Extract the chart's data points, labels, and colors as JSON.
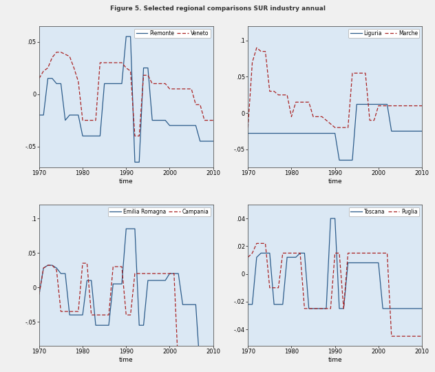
{
  "title": "Figure 5. Selected regional comparisons SUR industry annual",
  "background_color": "#dbe8f4",
  "fig_background": "#f0f0f0",
  "xlim": [
    1970,
    2010
  ],
  "xticks": [
    1970,
    1980,
    1990,
    2000,
    2010
  ],
  "xlabel": "time",
  "panels": [
    {
      "label1": "Piemonte",
      "label2": "Veneto",
      "ylim": [
        -0.07,
        0.065
      ],
      "yticks": [
        -0.05,
        0,
        0.05
      ],
      "yticklabels": [
        "-.05",
        "0",
        ".05"
      ],
      "series1_years": [
        1970,
        1971,
        1972,
        1973,
        1974,
        1975,
        1976,
        1977,
        1978,
        1979,
        1980,
        1981,
        1982,
        1983,
        1984,
        1985,
        1986,
        1987,
        1988,
        1989,
        1990,
        1991,
        1992,
        1993,
        1994,
        1995,
        1996,
        1997,
        1998,
        1999,
        2000,
        2001,
        2002,
        2003,
        2004,
        2005,
        2006,
        2007,
        2008,
        2009,
        2010
      ],
      "series1_vals": [
        -0.02,
        -0.02,
        0.015,
        0.015,
        0.01,
        0.01,
        -0.025,
        -0.02,
        -0.02,
        -0.02,
        -0.04,
        -0.04,
        -0.04,
        -0.04,
        -0.04,
        0.01,
        0.01,
        0.01,
        0.01,
        0.01,
        0.055,
        0.055,
        -0.065,
        -0.065,
        0.025,
        0.025,
        -0.025,
        -0.025,
        -0.025,
        -0.025,
        -0.03,
        -0.03,
        -0.03,
        -0.03,
        -0.03,
        -0.03,
        -0.03,
        -0.045,
        -0.045,
        -0.045,
        -0.045
      ],
      "series2_years": [
        1970,
        1971,
        1972,
        1973,
        1974,
        1975,
        1976,
        1977,
        1978,
        1979,
        1980,
        1981,
        1982,
        1983,
        1984,
        1985,
        1986,
        1987,
        1988,
        1989,
        1990,
        1991,
        1992,
        1993,
        1994,
        1995,
        1996,
        1997,
        1998,
        1999,
        2000,
        2001,
        2002,
        2003,
        2004,
        2005,
        2006,
        2007,
        2008,
        2009,
        2010
      ],
      "series2_vals": [
        0.015,
        0.022,
        0.025,
        0.035,
        0.04,
        0.04,
        0.038,
        0.036,
        0.025,
        0.012,
        -0.025,
        -0.025,
        -0.025,
        -0.025,
        0.03,
        0.03,
        0.03,
        0.03,
        0.03,
        0.03,
        0.025,
        0.022,
        -0.04,
        -0.04,
        0.018,
        0.018,
        0.01,
        0.01,
        0.01,
        0.01,
        0.005,
        0.005,
        0.005,
        0.005,
        0.005,
        0.005,
        -0.01,
        -0.01,
        -0.025,
        -0.025,
        -0.025
      ]
    },
    {
      "label1": "Liguria",
      "label2": "Marche",
      "ylim": [
        -0.075,
        0.12
      ],
      "yticks": [
        -0.05,
        0,
        0.05,
        0.1
      ],
      "yticklabels": [
        "-.05",
        "0",
        ".05",
        ".1"
      ],
      "series1_years": [
        1970,
        1971,
        1972,
        1973,
        1974,
        1975,
        1976,
        1977,
        1978,
        1979,
        1980,
        1981,
        1982,
        1983,
        1984,
        1985,
        1986,
        1987,
        1988,
        1989,
        1990,
        1991,
        1992,
        1993,
        1994,
        1995,
        1996,
        1997,
        1998,
        1999,
        2000,
        2001,
        2002,
        2003,
        2004,
        2005,
        2006,
        2007,
        2008,
        2009,
        2010
      ],
      "series1_vals": [
        -0.028,
        -0.028,
        -0.028,
        -0.028,
        -0.028,
        -0.028,
        -0.028,
        -0.028,
        -0.028,
        -0.028,
        -0.028,
        -0.028,
        -0.028,
        -0.028,
        -0.028,
        -0.028,
        -0.028,
        -0.028,
        -0.028,
        -0.028,
        -0.028,
        -0.065,
        -0.065,
        -0.065,
        -0.065,
        0.012,
        0.012,
        0.012,
        0.012,
        0.012,
        0.012,
        0.012,
        0.012,
        -0.025,
        -0.025,
        -0.025,
        -0.025,
        -0.025,
        -0.025,
        -0.025,
        -0.025
      ],
      "series2_years": [
        1970,
        1971,
        1972,
        1973,
        1974,
        1975,
        1976,
        1977,
        1978,
        1979,
        1980,
        1981,
        1982,
        1983,
        1984,
        1985,
        1986,
        1987,
        1988,
        1989,
        1990,
        1991,
        1992,
        1993,
        1994,
        1995,
        1996,
        1997,
        1998,
        1999,
        2000,
        2001,
        2002,
        2003,
        2004,
        2005,
        2006,
        2007,
        2008,
        2009,
        2010
      ],
      "series2_vals": [
        -0.02,
        0.07,
        0.09,
        0.085,
        0.085,
        0.03,
        0.03,
        0.025,
        0.025,
        0.025,
        -0.005,
        0.015,
        0.015,
        0.015,
        0.015,
        -0.005,
        -0.005,
        -0.005,
        -0.01,
        -0.015,
        -0.02,
        -0.02,
        -0.02,
        -0.02,
        0.055,
        0.055,
        0.055,
        0.055,
        -0.01,
        -0.01,
        0.01,
        0.01,
        0.01,
        0.01,
        0.01,
        0.01,
        0.01,
        0.01,
        0.01,
        0.01,
        0.01
      ]
    },
    {
      "label1": "Emilia Romagna",
      "label2": "Campania",
      "ylim": [
        -0.085,
        0.12
      ],
      "yticks": [
        -0.05,
        0,
        0.05,
        0.1
      ],
      "yticklabels": [
        "-.05",
        "0",
        ".05",
        ".1"
      ],
      "series1_years": [
        1970,
        1971,
        1972,
        1973,
        1974,
        1975,
        1976,
        1977,
        1978,
        1979,
        1980,
        1981,
        1982,
        1983,
        1984,
        1985,
        1986,
        1987,
        1988,
        1989,
        1990,
        1991,
        1992,
        1993,
        1994,
        1995,
        1996,
        1997,
        1998,
        1999,
        2000,
        2001,
        2002,
        2003,
        2004,
        2005,
        2006,
        2007,
        2008,
        2009,
        2010
      ],
      "series1_vals": [
        -0.01,
        0.028,
        0.032,
        0.032,
        0.028,
        0.02,
        0.02,
        -0.04,
        -0.04,
        -0.04,
        -0.04,
        0.01,
        0.01,
        -0.055,
        -0.055,
        -0.055,
        -0.055,
        0.005,
        0.005,
        0.005,
        0.085,
        0.085,
        0.085,
        -0.055,
        -0.055,
        0.01,
        0.01,
        0.01,
        0.01,
        0.01,
        0.02,
        0.02,
        0.02,
        -0.025,
        -0.025,
        -0.025,
        -0.025,
        -0.12,
        -0.12,
        -0.12,
        -0.12
      ],
      "series2_years": [
        1970,
        1971,
        1972,
        1973,
        1974,
        1975,
        1976,
        1977,
        1978,
        1979,
        1980,
        1981,
        1982,
        1983,
        1984,
        1985,
        1986,
        1987,
        1988,
        1989,
        1990,
        1991,
        1992,
        1993,
        1994,
        1995,
        1996,
        1997,
        1998,
        1999,
        2000,
        2001,
        2002,
        2003,
        2004,
        2005,
        2006,
        2007,
        2008,
        2009,
        2010
      ],
      "series2_vals": [
        -0.01,
        0.028,
        0.032,
        0.032,
        0.025,
        -0.035,
        -0.035,
        -0.035,
        -0.035,
        -0.035,
        0.035,
        0.035,
        -0.04,
        -0.04,
        -0.04,
        -0.04,
        -0.04,
        0.03,
        0.03,
        0.03,
        -0.04,
        -0.04,
        0.02,
        0.02,
        0.02,
        0.02,
        0.02,
        0.02,
        0.02,
        0.02,
        0.02,
        0.02,
        -0.12,
        -0.12,
        -0.12,
        -0.12,
        -0.12,
        -0.12,
        -0.12,
        -0.12,
        -0.12
      ]
    },
    {
      "label1": "Toscana",
      "label2": "Puglia",
      "ylim": [
        -0.052,
        0.05
      ],
      "yticks": [
        -0.04,
        -0.02,
        0,
        0.02,
        0.04
      ],
      "yticklabels": [
        "-.04",
        "-.02",
        "0",
        ".02",
        ".04"
      ],
      "series1_years": [
        1970,
        1971,
        1972,
        1973,
        1974,
        1975,
        1976,
        1977,
        1978,
        1979,
        1980,
        1981,
        1982,
        1983,
        1984,
        1985,
        1986,
        1987,
        1988,
        1989,
        1990,
        1991,
        1992,
        1993,
        1994,
        1995,
        1996,
        1997,
        1998,
        1999,
        2000,
        2001,
        2002,
        2003,
        2004,
        2005,
        2006,
        2007,
        2008,
        2009,
        2010
      ],
      "series1_vals": [
        -0.022,
        -0.022,
        0.012,
        0.015,
        0.015,
        0.015,
        -0.022,
        -0.022,
        -0.022,
        0.012,
        0.012,
        0.012,
        0.015,
        0.015,
        -0.025,
        -0.025,
        -0.025,
        -0.025,
        -0.025,
        0.04,
        0.04,
        -0.025,
        -0.025,
        0.008,
        0.008,
        0.008,
        0.008,
        0.008,
        0.008,
        0.008,
        0.008,
        -0.025,
        -0.025,
        -0.025,
        -0.025,
        -0.025,
        -0.025,
        -0.025,
        -0.025,
        -0.025,
        -0.025
      ],
      "series2_years": [
        1970,
        1971,
        1972,
        1973,
        1974,
        1975,
        1976,
        1977,
        1978,
        1979,
        1980,
        1981,
        1982,
        1983,
        1984,
        1985,
        1986,
        1987,
        1988,
        1989,
        1990,
        1991,
        1992,
        1993,
        1994,
        1995,
        1996,
        1997,
        1998,
        1999,
        2000,
        2001,
        2002,
        2003,
        2004,
        2005,
        2006,
        2007,
        2008,
        2009,
        2010
      ],
      "series2_vals": [
        0.012,
        0.015,
        0.022,
        0.022,
        0.022,
        -0.01,
        -0.01,
        -0.01,
        0.015,
        0.015,
        0.015,
        0.015,
        0.015,
        -0.025,
        -0.025,
        -0.025,
        -0.025,
        -0.025,
        -0.025,
        -0.025,
        0.015,
        0.015,
        -0.025,
        0.015,
        0.015,
        0.015,
        0.015,
        0.015,
        0.015,
        0.015,
        0.015,
        0.015,
        0.015,
        -0.045,
        -0.045,
        -0.045,
        -0.045,
        -0.045,
        -0.045,
        -0.045,
        -0.045
      ]
    }
  ],
  "color1": "#2b5b8a",
  "color2": "#aa2222",
  "lw1": 0.9,
  "lw2": 0.9,
  "dash_pattern": [
    4,
    2,
    4,
    2
  ]
}
